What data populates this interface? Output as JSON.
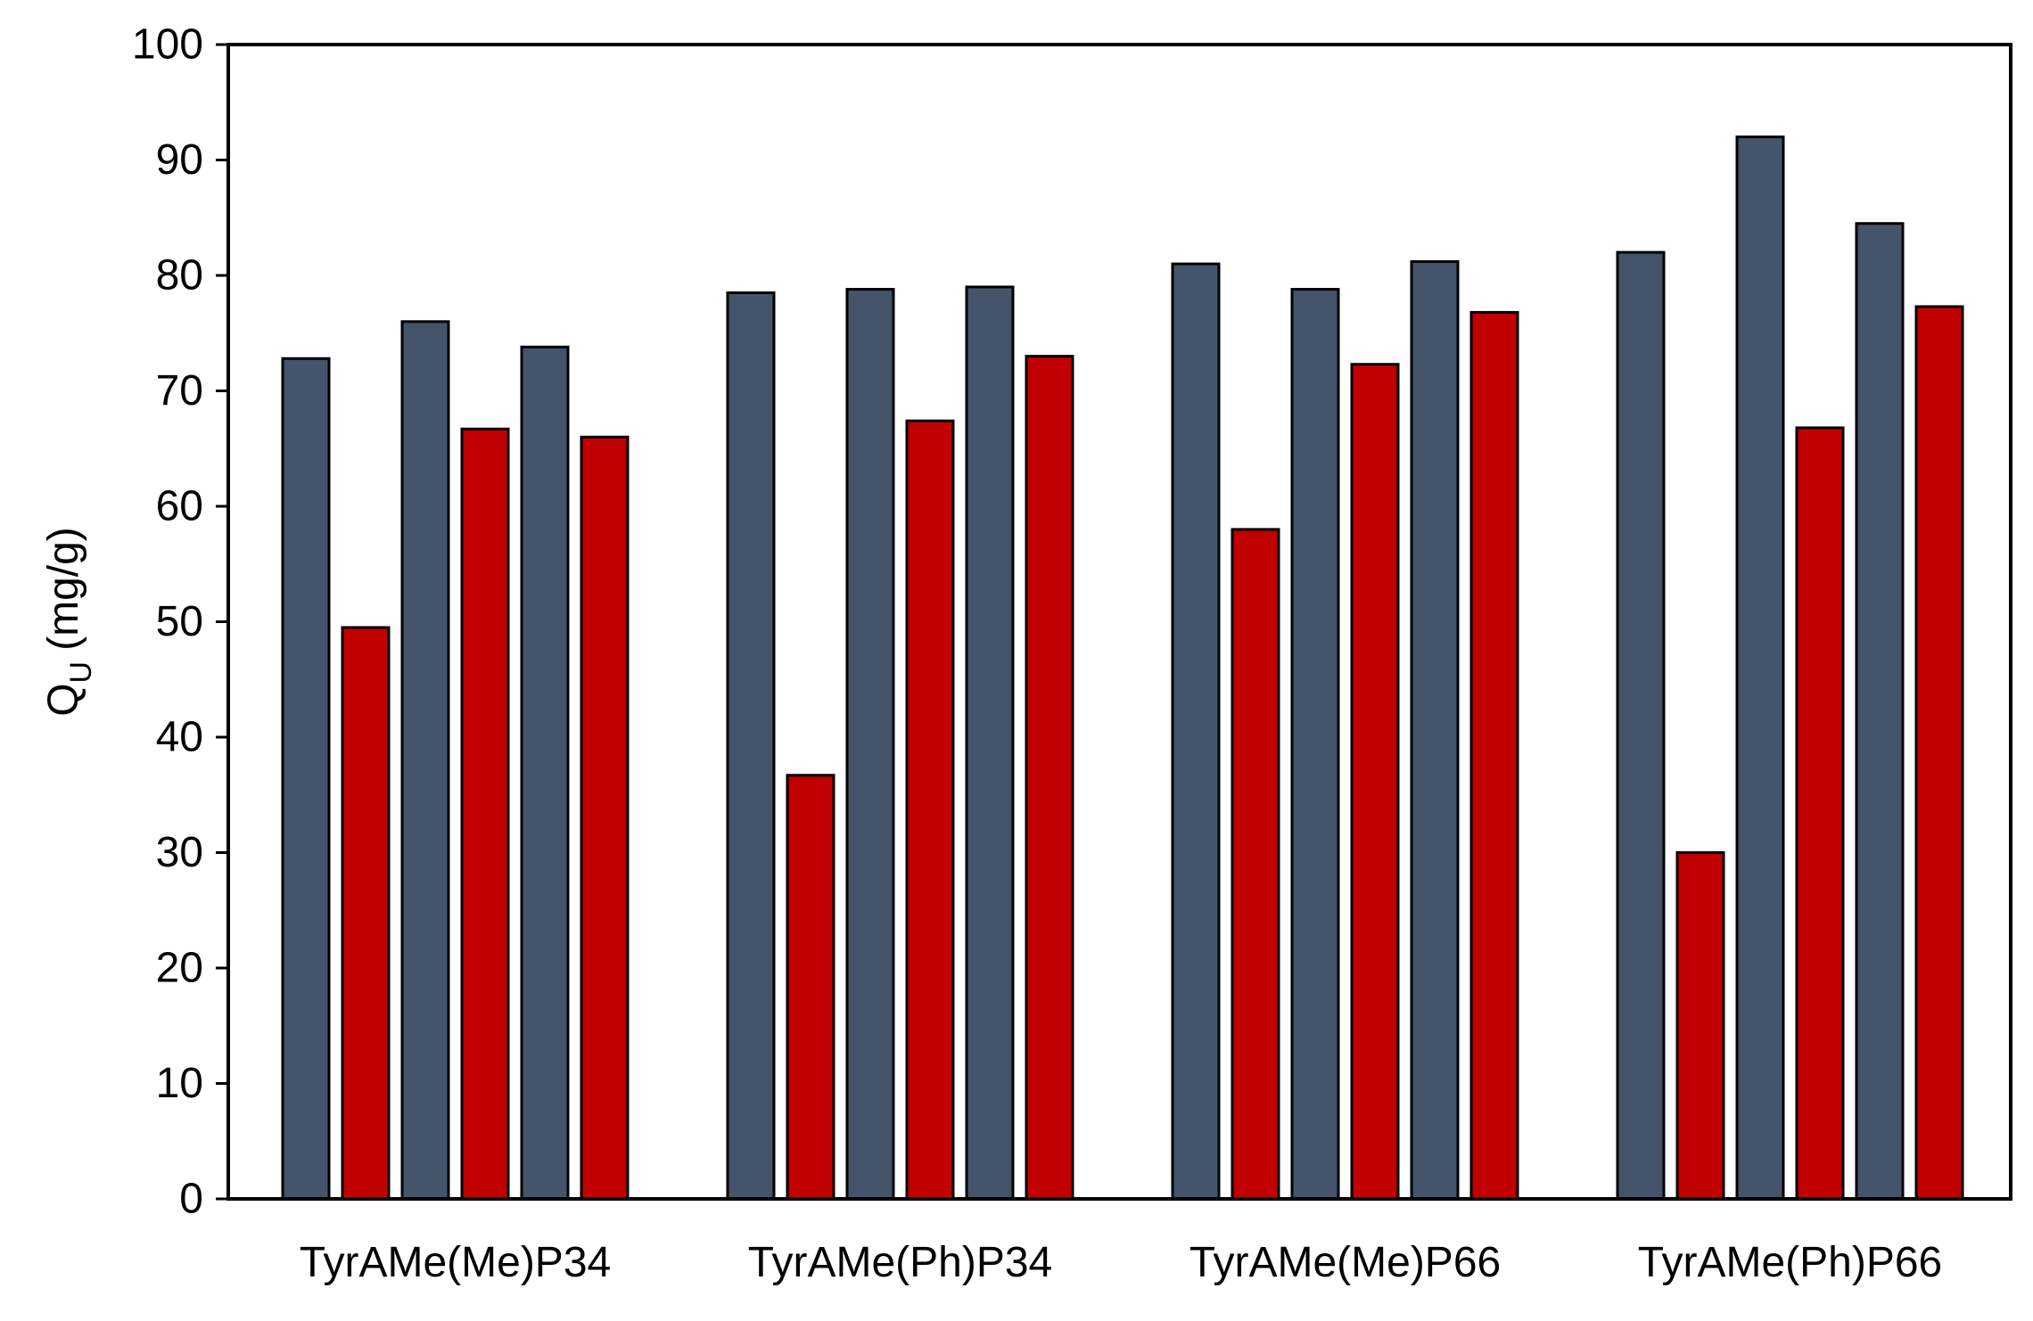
{
  "chart_data": {
    "type": "bar",
    "categories": [
      "TyrAMe(Me)P34",
      "TyrAMe(Ph)P34",
      "TyrAMe(Me)P66",
      "TyrAMe(Ph)P66"
    ],
    "series": [
      {
        "color": "#44546A",
        "values": [
          72.8,
          78.5,
          81.0,
          82.0
        ]
      },
      {
        "color": "#C00000",
        "values": [
          49.5,
          36.7,
          58.0,
          30.0
        ]
      },
      {
        "color": "#44546A",
        "values": [
          76.0,
          78.8,
          78.8,
          92.0
        ]
      },
      {
        "color": "#C00000",
        "values": [
          66.7,
          67.4,
          72.3,
          66.8
        ]
      },
      {
        "color": "#44546A",
        "values": [
          73.8,
          79.0,
          81.2,
          84.5
        ]
      },
      {
        "color": "#C00000",
        "values": [
          66.0,
          73.0,
          76.8,
          77.3
        ]
      }
    ],
    "ylabel": "Q",
    "ylabel_subscript": "U",
    "ylabel_unit": "(mg/g)",
    "ylim": [
      0,
      100
    ],
    "yticks": [
      "0",
      "10",
      "20",
      "30",
      "40",
      "50",
      "60",
      "70",
      "80",
      "90",
      "100"
    ],
    "grid": false,
    "legend": "none"
  }
}
